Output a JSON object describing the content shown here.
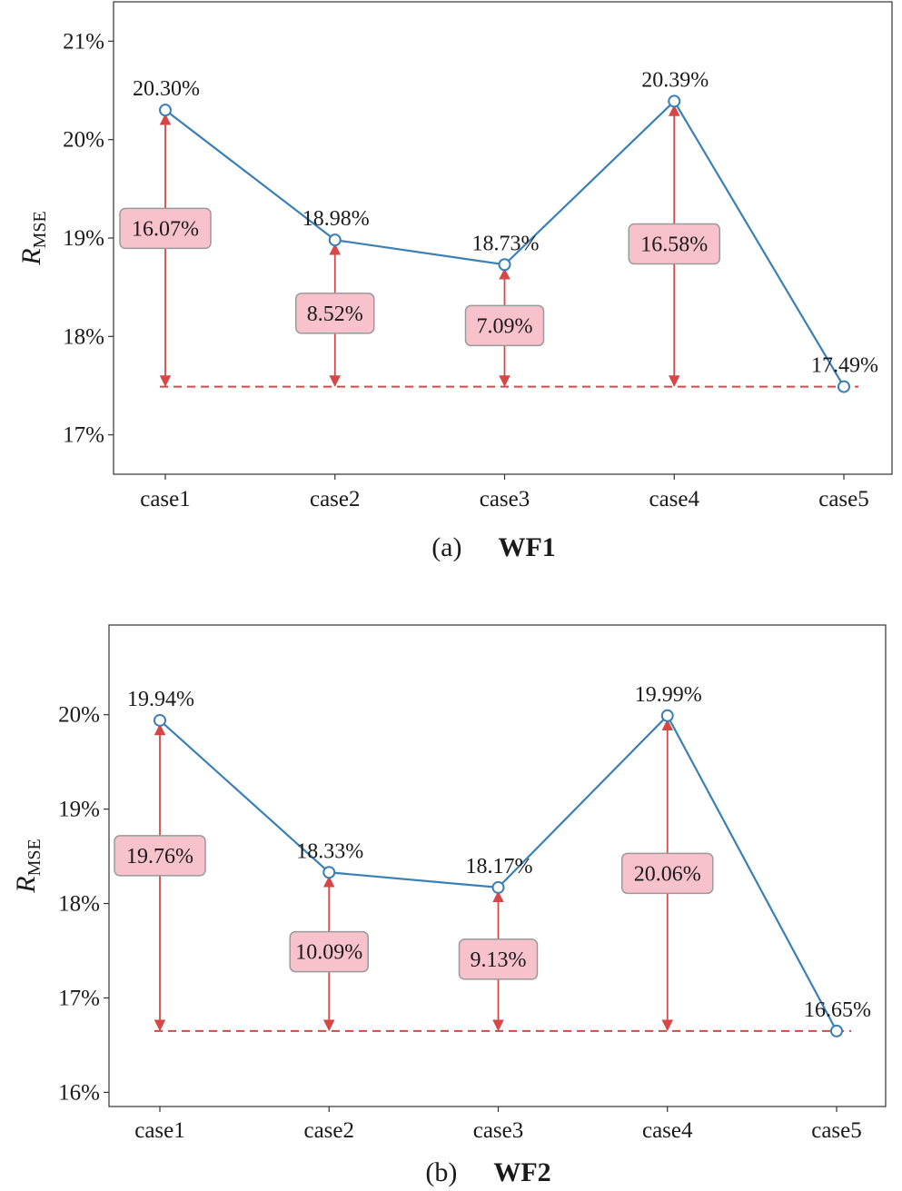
{
  "colors": {
    "line": "#3a7fb5",
    "arrow": "#d64848",
    "box_fill": "#f8c2cc",
    "box_stroke": "#9a9a9a",
    "axis": "#333333"
  },
  "chart_data": [
    {
      "type": "line",
      "caption_prefix": "(a)",
      "caption_title": "WF1",
      "ylabel_main": "R",
      "ylabel_sub": "MSE",
      "categories": [
        "case1",
        "case2",
        "case3",
        "case4",
        "case5"
      ],
      "values": [
        20.3,
        18.98,
        18.73,
        20.39,
        17.49
      ],
      "value_labels": [
        "20.30%",
        "18.98%",
        "18.73%",
        "20.39%",
        "17.49%"
      ],
      "reductions": [
        16.07,
        8.52,
        7.09,
        16.58
      ],
      "reduction_labels": [
        "16.07%",
        "8.52%",
        "7.09%",
        "16.58%"
      ],
      "baseline": 17.49,
      "yticks": [
        17,
        18,
        19,
        20,
        21
      ],
      "ytick_labels": [
        "17%",
        "18%",
        "19%",
        "20%",
        "21%"
      ],
      "ylim": [
        16.6,
        21.4
      ],
      "grid": false,
      "legend": "none"
    },
    {
      "type": "line",
      "caption_prefix": "(b)",
      "caption_title": "WF2",
      "ylabel_main": "R",
      "ylabel_sub": "MSE",
      "categories": [
        "case1",
        "case2",
        "case3",
        "case4",
        "case5"
      ],
      "values": [
        19.94,
        18.33,
        18.17,
        19.99,
        16.65
      ],
      "value_labels": [
        "19.94%",
        "18.33%",
        "18.17%",
        "19.99%",
        "16.65%"
      ],
      "reductions": [
        19.76,
        10.09,
        9.13,
        20.06
      ],
      "reduction_labels": [
        "19.76%",
        "10.09%",
        "9.13%",
        "20.06%"
      ],
      "baseline": 16.65,
      "yticks": [
        16,
        17,
        18,
        19,
        20
      ],
      "ytick_labels": [
        "16%",
        "17%",
        "18%",
        "19%",
        "20%"
      ],
      "ylim": [
        15.85,
        20.95
      ],
      "grid": false,
      "legend": "none"
    }
  ]
}
